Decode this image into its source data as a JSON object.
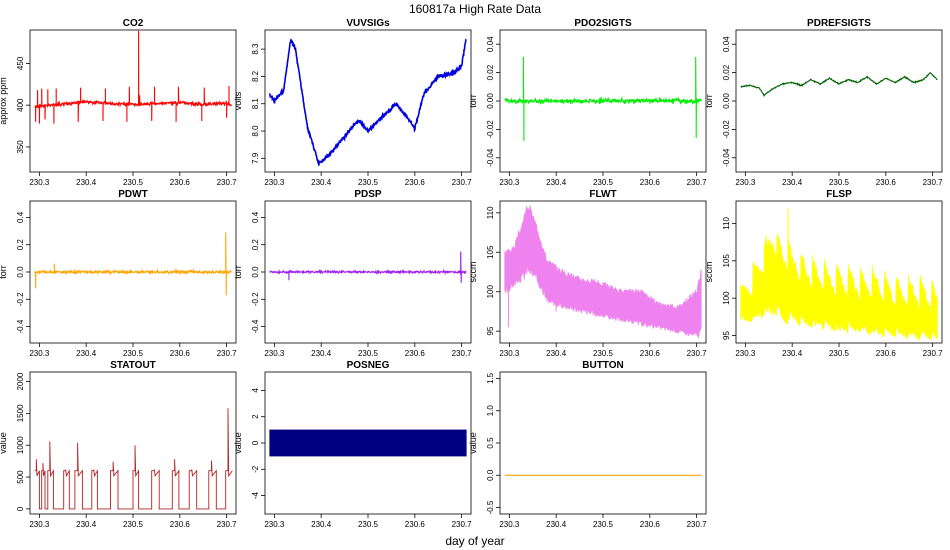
{
  "figure": {
    "title": "160817a   High Rate Data",
    "xlabel": "day of year"
  },
  "colors": {
    "axis": "#000000",
    "tick_text": "#000000"
  },
  "chart_data": [
    {
      "id": "co2",
      "type": "line",
      "title": "CO2",
      "ylabel": "approx ppm",
      "color": "#ff0000",
      "xlim": [
        230.28,
        230.72
      ],
      "ylim": [
        320,
        490
      ],
      "xticks": [
        230.3,
        230.4,
        230.5,
        230.6,
        230.7
      ],
      "xtick_labels": [
        "230.3",
        "230.4",
        "230.5",
        "230.6",
        "230.7"
      ],
      "yticks": [
        350,
        400,
        450
      ],
      "ytick_labels": [
        "350",
        "400",
        "450"
      ],
      "series_kind": "noisy",
      "seed": 11,
      "noise": 3.2,
      "baseline": {
        "x": [
          230.29,
          230.32,
          230.36,
          230.4,
          230.45,
          230.5,
          230.55,
          230.6,
          230.65,
          230.7,
          230.71
        ],
        "y": [
          398,
          400,
          402,
          404,
          402,
          401,
          402,
          403,
          401,
          402,
          400
        ]
      },
      "spikes": [
        {
          "x": 230.292,
          "y": 380
        },
        {
          "x": 230.296,
          "y": 418
        },
        {
          "x": 230.3,
          "y": 378
        },
        {
          "x": 230.305,
          "y": 420
        },
        {
          "x": 230.312,
          "y": 383
        },
        {
          "x": 230.318,
          "y": 419
        },
        {
          "x": 230.331,
          "y": 378
        },
        {
          "x": 230.336,
          "y": 420
        },
        {
          "x": 230.383,
          "y": 380
        },
        {
          "x": 230.388,
          "y": 421
        },
        {
          "x": 230.436,
          "y": 381
        },
        {
          "x": 230.441,
          "y": 420
        },
        {
          "x": 230.487,
          "y": 380
        },
        {
          "x": 230.492,
          "y": 422
        },
        {
          "x": 230.512,
          "y": 489
        },
        {
          "x": 230.514,
          "y": 412
        },
        {
          "x": 230.54,
          "y": 381
        },
        {
          "x": 230.546,
          "y": 422
        },
        {
          "x": 230.592,
          "y": 380
        },
        {
          "x": 230.597,
          "y": 422
        },
        {
          "x": 230.647,
          "y": 381
        },
        {
          "x": 230.652,
          "y": 421
        },
        {
          "x": 230.7,
          "y": 385
        },
        {
          "x": 230.705,
          "y": 423
        }
      ]
    },
    {
      "id": "vuvsigs",
      "type": "line",
      "title": "VUVSIGs",
      "ylabel": "volts",
      "color": "#0000dd",
      "xlim": [
        230.28,
        230.72
      ],
      "ylim": [
        7.85,
        8.37
      ],
      "xticks": [
        230.3,
        230.4,
        230.5,
        230.6,
        230.7
      ],
      "xtick_labels": [
        "230.3",
        "230.4",
        "230.5",
        "230.6",
        "230.7"
      ],
      "yticks": [
        7.9,
        8.0,
        8.1,
        8.2,
        8.3
      ],
      "ytick_labels": [
        "7.9",
        "8.0",
        "8.1",
        "8.2",
        "8.3"
      ],
      "series_kind": "noisy",
      "seed": 23,
      "noise": 0.012,
      "baseline": {
        "x": [
          230.29,
          230.3,
          230.32,
          230.335,
          230.345,
          230.37,
          230.395,
          230.42,
          230.45,
          230.48,
          230.5,
          230.53,
          230.56,
          230.58,
          230.6,
          230.62,
          230.65,
          230.68,
          230.7,
          230.71
        ],
        "y": [
          8.13,
          8.11,
          8.15,
          8.34,
          8.3,
          8.02,
          7.88,
          7.92,
          7.98,
          8.04,
          8.0,
          8.05,
          8.1,
          8.06,
          8.01,
          8.14,
          8.2,
          8.21,
          8.24,
          8.34
        ]
      }
    },
    {
      "id": "pdo2sigts",
      "type": "line",
      "title": "PDO2SIGTS",
      "ylabel": "torr",
      "color": "#00ee00",
      "xlim": [
        230.28,
        230.72
      ],
      "ylim": [
        -0.05,
        0.05
      ],
      "xticks": [
        230.3,
        230.4,
        230.5,
        230.6,
        230.7
      ],
      "xtick_labels": [
        "230.3",
        "230.4",
        "230.5",
        "230.6",
        "230.7"
      ],
      "yticks": [
        -0.04,
        -0.02,
        0.0,
        0.02,
        0.04
      ],
      "ytick_labels": [
        "-0.04",
        "-0.02",
        "0.00",
        "0.02",
        "0.04"
      ],
      "series_kind": "noisy",
      "seed": 37,
      "noise": 0.0025,
      "baseline": {
        "x": [
          230.29,
          230.71
        ],
        "y": [
          0.0,
          0.0
        ]
      },
      "spikes": [
        {
          "x": 230.33,
          "y": 0.031
        },
        {
          "x": 230.331,
          "y": -0.028
        },
        {
          "x": 230.698,
          "y": 0.031
        },
        {
          "x": 230.699,
          "y": -0.026
        }
      ]
    },
    {
      "id": "pdrefsigts",
      "type": "line",
      "title": "PDREFSIGTS",
      "ylabel": "torr",
      "color": "#006400",
      "xlim": [
        230.28,
        230.72
      ],
      "ylim": [
        -0.05,
        0.05
      ],
      "xticks": [
        230.3,
        230.4,
        230.5,
        230.6,
        230.7
      ],
      "xtick_labels": [
        "230.3",
        "230.4",
        "230.5",
        "230.6",
        "230.7"
      ],
      "yticks": [
        -0.04,
        -0.02,
        0.0,
        0.02,
        0.04
      ],
      "ytick_labels": [
        "-0.04",
        "-0.02",
        "0.00",
        "0.02",
        "0.04"
      ],
      "series_kind": "noisy",
      "seed": 41,
      "noise": 0.0006,
      "baseline": {
        "x": [
          230.29,
          230.31,
          230.33,
          230.34,
          230.36,
          230.38,
          230.4,
          230.42,
          230.44,
          230.46,
          230.48,
          230.5,
          230.52,
          230.54,
          230.56,
          230.58,
          230.6,
          230.62,
          230.64,
          230.66,
          230.68,
          230.695,
          230.71
        ],
        "y": [
          0.01,
          0.011,
          0.009,
          0.004,
          0.009,
          0.012,
          0.013,
          0.011,
          0.015,
          0.012,
          0.016,
          0.012,
          0.015,
          0.013,
          0.017,
          0.012,
          0.016,
          0.013,
          0.017,
          0.013,
          0.015,
          0.02,
          0.015
        ]
      }
    },
    {
      "id": "pdwt",
      "type": "line",
      "title": "PDWT",
      "ylabel": "torr",
      "color": "#ffa500",
      "xlim": [
        230.28,
        230.72
      ],
      "ylim": [
        -0.52,
        0.52
      ],
      "xticks": [
        230.3,
        230.4,
        230.5,
        230.6,
        230.7
      ],
      "xtick_labels": [
        "230.3",
        "230.4",
        "230.5",
        "230.6",
        "230.7"
      ],
      "yticks": [
        -0.4,
        -0.2,
        0.0,
        0.2,
        0.4
      ],
      "ytick_labels": [
        "-0.4",
        "-0.2",
        "0.0",
        "0.2",
        "0.4"
      ],
      "series_kind": "noisy",
      "seed": 53,
      "noise": 0.015,
      "baseline": {
        "x": [
          230.29,
          230.71
        ],
        "y": [
          0.0,
          0.0
        ]
      },
      "spikes": [
        {
          "x": 230.292,
          "y": -0.12
        },
        {
          "x": 230.332,
          "y": 0.06
        },
        {
          "x": 230.698,
          "y": 0.29
        },
        {
          "x": 230.699,
          "y": -0.17
        }
      ]
    },
    {
      "id": "pdsp",
      "type": "line",
      "title": "PDSP",
      "ylabel": "torr",
      "color": "#a020f0",
      "xlim": [
        230.28,
        230.72
      ],
      "ylim": [
        -0.52,
        0.52
      ],
      "xticks": [
        230.3,
        230.4,
        230.5,
        230.6,
        230.7
      ],
      "xtick_labels": [
        "230.3",
        "230.4",
        "230.5",
        "230.6",
        "230.7"
      ],
      "yticks": [
        -0.4,
        -0.2,
        0.0,
        0.2,
        0.4
      ],
      "ytick_labels": [
        "-0.4",
        "-0.2",
        "0.0",
        "0.2",
        "0.4"
      ],
      "series_kind": "noisy",
      "seed": 59,
      "noise": 0.012,
      "baseline": {
        "x": [
          230.29,
          230.71
        ],
        "y": [
          0.0,
          0.0
        ]
      },
      "spikes": [
        {
          "x": 230.331,
          "y": -0.06
        },
        {
          "x": 230.698,
          "y": 0.15
        },
        {
          "x": 230.699,
          "y": -0.08
        }
      ]
    },
    {
      "id": "flwt",
      "type": "band",
      "title": "FLWT",
      "ylabel": "sccm",
      "color": "#ee82ee",
      "xlim": [
        230.28,
        230.72
      ],
      "ylim": [
        93.5,
        111.5
      ],
      "xticks": [
        230.3,
        230.4,
        230.5,
        230.6,
        230.7
      ],
      "xtick_labels": [
        "230.3",
        "230.4",
        "230.5",
        "230.6",
        "230.7"
      ],
      "yticks": [
        95,
        100,
        105,
        110
      ],
      "ytick_labels": [
        "95",
        "100",
        "105",
        "110"
      ],
      "seed": 67,
      "upper": {
        "x": [
          230.29,
          230.31,
          230.33,
          230.34,
          230.36,
          230.38,
          230.4,
          230.43,
          230.46,
          230.5,
          230.54,
          230.58,
          230.62,
          230.66,
          230.7,
          230.71
        ],
        "y": [
          105,
          105.5,
          109,
          111,
          108,
          104,
          103,
          102,
          101.5,
          101,
          100,
          100,
          98.5,
          98,
          100,
          102.5
        ]
      },
      "lower": {
        "x": [
          230.29,
          230.31,
          230.33,
          230.34,
          230.36,
          230.38,
          230.4,
          230.43,
          230.46,
          230.5,
          230.54,
          230.58,
          230.62,
          230.66,
          230.7,
          230.71
        ],
        "y": [
          100,
          101,
          102,
          103,
          101.5,
          99,
          98.5,
          98,
          97.5,
          97,
          96.5,
          96,
          95.5,
          95,
          94.5,
          95
        ]
      },
      "spikes": [
        {
          "x": 230.298,
          "y": 95.5
        },
        {
          "x": 230.4,
          "y": 97.5
        }
      ]
    },
    {
      "id": "flsp",
      "type": "band",
      "title": "FLSP",
      "ylabel": "sccm",
      "color": "#ffff00",
      "xlim": [
        230.28,
        230.72
      ],
      "ylim": [
        94.0,
        113.0
      ],
      "xticks": [
        230.3,
        230.4,
        230.5,
        230.6,
        230.7
      ],
      "xtick_labels": [
        "230.3",
        "230.4",
        "230.5",
        "230.6",
        "230.7"
      ],
      "yticks": [
        95,
        100,
        105,
        110
      ],
      "ytick_labels": [
        "95",
        "100",
        "105",
        "110"
      ],
      "seed": 71,
      "upper": {
        "x": [
          230.29,
          230.32,
          230.35,
          230.36,
          230.38,
          230.4,
          230.43,
          230.46,
          230.5,
          230.54,
          230.58,
          230.62,
          230.66,
          230.7,
          230.71
        ],
        "y": [
          102,
          105,
          109,
          110,
          108,
          107,
          106,
          105,
          104.5,
          104,
          104,
          103,
          103,
          102.5,
          102
        ]
      },
      "lower": {
        "x": [
          230.29,
          230.32,
          230.35,
          230.36,
          230.38,
          230.4,
          230.43,
          230.46,
          230.5,
          230.54,
          230.58,
          230.62,
          230.66,
          230.7,
          230.71
        ],
        "y": [
          97.5,
          98,
          99,
          99,
          98,
          98,
          97.5,
          97,
          96.5,
          96.5,
          96,
          96,
          95.5,
          95.5,
          95
        ]
      },
      "oscillation_period": 0.0255,
      "spikes": [
        {
          "x": 230.391,
          "y": 112.0
        }
      ]
    },
    {
      "id": "statout",
      "type": "step",
      "title": "STATOUT",
      "ylabel": "value",
      "color": "#b22222",
      "xlim": [
        230.28,
        230.72
      ],
      "ylim": [
        -80,
        2150
      ],
      "xticks": [
        230.3,
        230.4,
        230.5,
        230.6,
        230.7
      ],
      "xtick_labels": [
        "230.3",
        "230.4",
        "230.5",
        "230.6",
        "230.7"
      ],
      "yticks": [
        0,
        500,
        1000,
        1500,
        2000
      ],
      "ytick_labels": [
        "0",
        "500",
        "1000",
        "1500",
        "2000"
      ],
      "low_level": 0,
      "mid_level": 600,
      "high_level": 1050,
      "pulses": [
        {
          "start": 230.29,
          "end": 230.3,
          "level": 600,
          "peak": 780
        },
        {
          "start": 230.305,
          "end": 230.312,
          "level": 600,
          "peak": 720
        },
        {
          "start": 230.318,
          "end": 230.33,
          "level": 600,
          "peak": 1060
        },
        {
          "start": 230.352,
          "end": 230.364,
          "level": 600,
          "peak": 620
        },
        {
          "start": 230.376,
          "end": 230.392,
          "level": 600,
          "peak": 1040
        },
        {
          "start": 230.412,
          "end": 230.424,
          "level": 600,
          "peak": 620
        },
        {
          "start": 230.452,
          "end": 230.468,
          "level": 600,
          "peak": 740
        },
        {
          "start": 230.5,
          "end": 230.512,
          "level": 600,
          "peak": 1000
        },
        {
          "start": 230.54,
          "end": 230.556,
          "level": 600,
          "peak": 620
        },
        {
          "start": 230.584,
          "end": 230.598,
          "level": 600,
          "peak": 780
        },
        {
          "start": 230.62,
          "end": 230.636,
          "level": 600,
          "peak": 620
        },
        {
          "start": 230.662,
          "end": 230.678,
          "level": 600,
          "peak": 760
        },
        {
          "start": 230.698,
          "end": 230.712,
          "level": 600,
          "peak": 1580
        }
      ]
    },
    {
      "id": "posneg",
      "type": "band",
      "title": "POSNEG",
      "ylabel": "value",
      "color": "#000080",
      "xlim": [
        230.28,
        230.72
      ],
      "ylim": [
        -5.4,
        5.4
      ],
      "xticks": [
        230.3,
        230.4,
        230.5,
        230.6,
        230.7
      ],
      "xtick_labels": [
        "230.3",
        "230.4",
        "230.5",
        "230.6",
        "230.7"
      ],
      "yticks": [
        -4,
        -2,
        0,
        2,
        4
      ],
      "ytick_labels": [
        "-4",
        "-2",
        "0",
        "2",
        "4"
      ],
      "seed": 0,
      "upper": {
        "x": [
          230.29,
          230.71
        ],
        "y": [
          1,
          1
        ]
      },
      "lower": {
        "x": [
          230.29,
          230.71
        ],
        "y": [
          -1,
          -1
        ]
      }
    },
    {
      "id": "button",
      "type": "line",
      "title": "BUTTON",
      "ylabel": "value",
      "color": "#ffa500",
      "xlim": [
        230.28,
        230.72
      ],
      "ylim": [
        -0.6,
        1.6
      ],
      "xticks": [
        230.3,
        230.4,
        230.5,
        230.6,
        230.7
      ],
      "xtick_labels": [
        "230.3",
        "230.4",
        "230.5",
        "230.6",
        "230.7"
      ],
      "yticks": [
        -0.5,
        0.0,
        0.5,
        1.0,
        1.5
      ],
      "ytick_labels": [
        "-0.5",
        "0.0",
        "0.5",
        "1.0",
        "1.5"
      ],
      "series_kind": "flat",
      "baseline": {
        "x": [
          230.29,
          230.71
        ],
        "y": [
          0,
          0
        ]
      }
    }
  ]
}
